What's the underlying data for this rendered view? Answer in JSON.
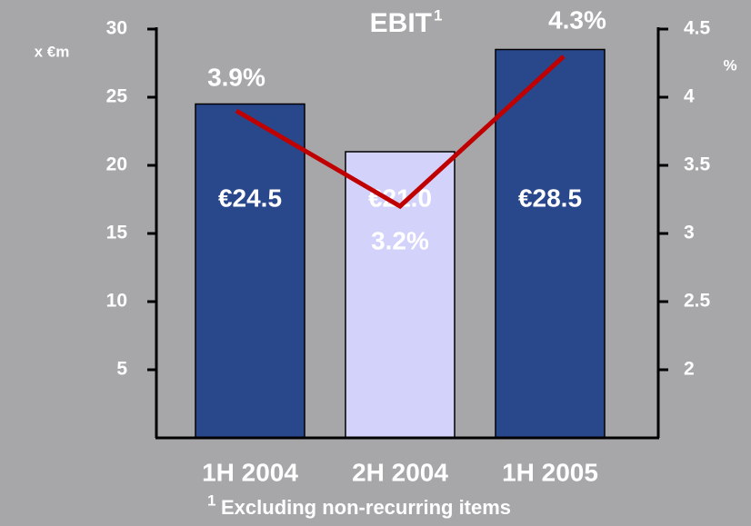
{
  "chart_data": {
    "type": "bar",
    "title": "EBIT",
    "title_superscript": "1",
    "y_label": "x €m",
    "y2_label": "%",
    "categories": [
      "1H 2004",
      "2H 2004",
      "1H 2005"
    ],
    "series": [
      {
        "type": "bar",
        "colors": [
          "#29488c",
          "#d2d2fa",
          "#29488c"
        ],
        "values": [
          24.5,
          21.0,
          28.5
        ],
        "value_labels": [
          "€24.5",
          "€21.0",
          "€28.5"
        ]
      },
      {
        "type": "line",
        "axis": "y2",
        "color": "#c00000",
        "values": [
          3.9,
          3.2,
          4.3
        ],
        "value_labels": [
          "3.9%",
          "3.2%",
          "4.3%"
        ]
      }
    ],
    "ylim": [
      0,
      30
    ],
    "yticks": [
      5,
      10,
      15,
      20,
      25,
      30
    ],
    "y2lim": [
      1.5,
      4.5
    ],
    "y2ticks": [
      {
        "value": 2,
        "label": "2"
      },
      {
        "value": 2.5,
        "label": "2.5"
      },
      {
        "value": 3,
        "label": "3"
      },
      {
        "value": 3.5,
        "label": "3.5"
      },
      {
        "value": 4,
        "label": "4"
      },
      {
        "value": 4.5,
        "label": "4.5"
      }
    ],
    "footnote": {
      "marker": "1",
      "text": "Excluding non-recurring items"
    }
  }
}
